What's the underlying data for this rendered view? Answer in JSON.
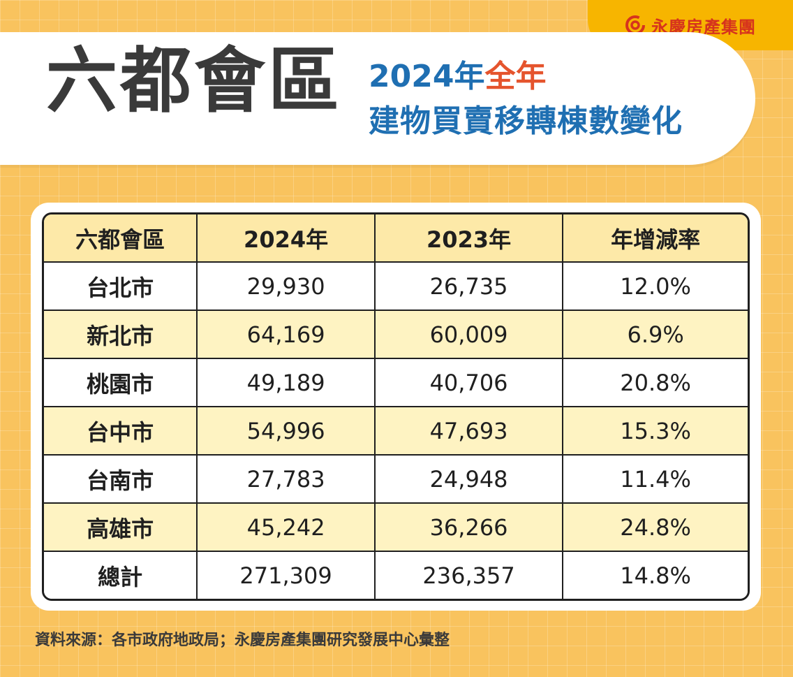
{
  "brand": {
    "logo_text": "永慶房產集團",
    "logo_icon": "yungching-logo-icon",
    "accent": "#d6331d"
  },
  "header": {
    "main_title": "六都會區",
    "subtitle_year": "2024年",
    "subtitle_highlight": "全年",
    "subtitle_line2": "建物買賣移轉棟數變化"
  },
  "table": {
    "columns": [
      "六都會區",
      "2024年",
      "2023年",
      "年增減率"
    ],
    "rows": [
      {
        "region": "台北市",
        "y2024": "29,930",
        "y2023": "26,735",
        "rate": "12.0%"
      },
      {
        "region": "新北市",
        "y2024": "64,169",
        "y2023": "60,009",
        "rate": "6.9%"
      },
      {
        "region": "桃園市",
        "y2024": "49,189",
        "y2023": "40,706",
        "rate": "20.8%"
      },
      {
        "region": "台中市",
        "y2024": "54,996",
        "y2023": "47,693",
        "rate": "15.3%"
      },
      {
        "region": "台南市",
        "y2024": "27,783",
        "y2023": "24,948",
        "rate": "11.4%"
      },
      {
        "region": "高雄市",
        "y2024": "45,242",
        "y2023": "36,266",
        "rate": "24.8%"
      },
      {
        "region": "總計",
        "y2024": "271,309",
        "y2023": "236,357",
        "rate": "14.8%"
      }
    ]
  },
  "footer": {
    "source": "資料來源：各市政府地政局；永慶房產集團研究發展中心彙整"
  },
  "colors": {
    "background": "#f9c35e",
    "title_blue": "#1f6fb2",
    "title_red": "#e5542d",
    "header_row": "#fde9a8",
    "alt_row": "#fef3c2"
  }
}
